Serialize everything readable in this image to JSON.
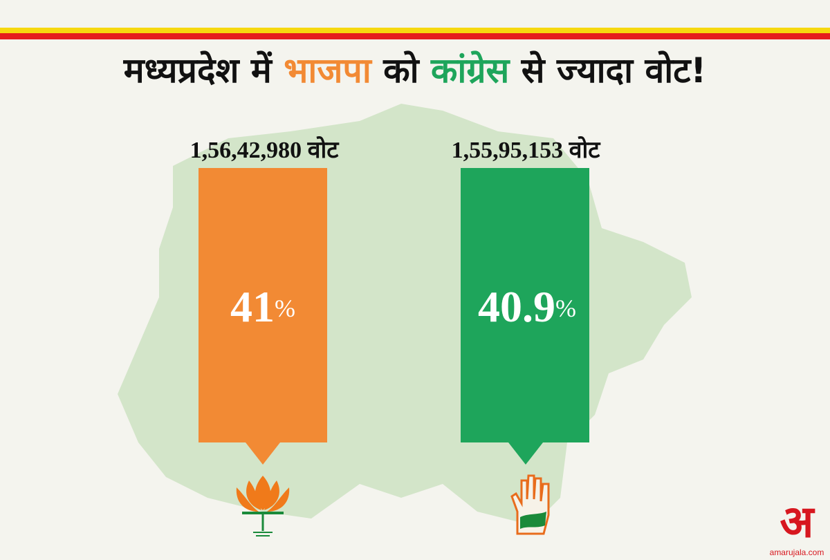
{
  "title": {
    "parts": [
      "मध्यप्रदेश में",
      "भाजपा",
      "को",
      "कांग्रेस",
      "से ज्यादा वोट!"
    ]
  },
  "panels": [
    {
      "votes": "1,56,42,980 वोट",
      "percent": "41",
      "unit": "%"
    },
    {
      "votes": "1,55,95,153 वोट",
      "percent": "40.9",
      "unit": "%"
    }
  ],
  "logo": {
    "mark": "अ",
    "site": "amarujala.com"
  }
}
